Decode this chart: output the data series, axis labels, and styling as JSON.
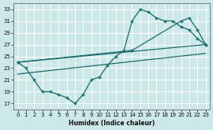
{
  "xlabel": "Humidex (Indice chaleur)",
  "bg_color": "#cce8e8",
  "grid_color": "#b0d8d8",
  "line_color": "#1a6b6b",
  "xlim": [
    -0.5,
    23.5
  ],
  "ylim": [
    16,
    34
  ],
  "yticks": [
    17,
    19,
    21,
    23,
    25,
    27,
    29,
    31,
    33
  ],
  "xticks": [
    0,
    1,
    2,
    3,
    4,
    5,
    6,
    7,
    8,
    9,
    10,
    11,
    12,
    13,
    14,
    15,
    16,
    17,
    18,
    19,
    20,
    21,
    22,
    23
  ],
  "line1_x": [
    0,
    1,
    2,
    3,
    4,
    5,
    6,
    7,
    8,
    9,
    10,
    11,
    12,
    13,
    14,
    15,
    16,
    17,
    18,
    19,
    20,
    21,
    22,
    23
  ],
  "line1_y": [
    24.0,
    23.0,
    21.0,
    19.0,
    19.0,
    18.5,
    18.0,
    17.0,
    18.5,
    21.0,
    21.5,
    23.5,
    25.0,
    26.0,
    31.0,
    33.0,
    32.5,
    31.5,
    31.0,
    31.0,
    30.0,
    29.5,
    28.0,
    27.0
  ],
  "line2_x": [
    0,
    23
  ],
  "line2_y": [
    24.0,
    27.0
  ],
  "line3_x": [
    0,
    14,
    20,
    21,
    22,
    23
  ],
  "line3_y": [
    24.0,
    26.0,
    31.0,
    31.5,
    29.5,
    27.0
  ],
  "line4_x": [
    0,
    23
  ],
  "line4_y": [
    22.0,
    25.5
  ]
}
